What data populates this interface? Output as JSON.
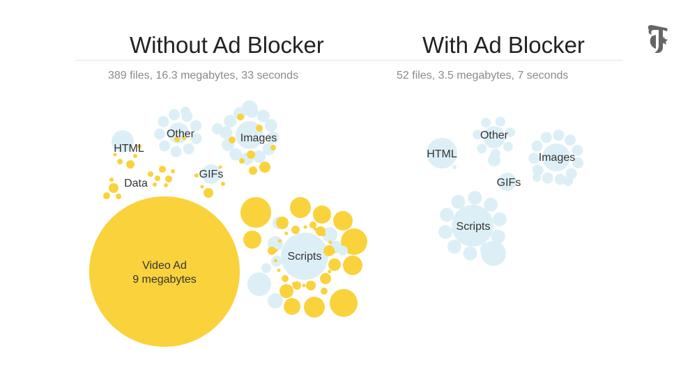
{
  "left": {
    "title": "Without Ad Blocker",
    "summary": "389 files, 16.3 megabytes, 33 seconds",
    "groups": {
      "html": "HTML",
      "other": "Other",
      "images": "Images",
      "data": "Data",
      "gifs": "GIFs",
      "scripts": "Scripts",
      "video_ad_name": "Video Ad",
      "video_ad_size": "9 megabytes"
    }
  },
  "right": {
    "title": "With Ad Blocker",
    "summary": "52 files, 3.5 megabytes, 7 seconds",
    "groups": {
      "html": "HTML",
      "other": "Other",
      "images": "Images",
      "gifs": "GIFs",
      "scripts": "Scripts"
    }
  },
  "colors": {
    "ad": "#fad23c",
    "content": "#ddeff6",
    "text": "#333333",
    "title": "#222222",
    "subtitle": "#8a8a8a"
  },
  "logo": {
    "icon": "nyt-t-logo"
  }
}
